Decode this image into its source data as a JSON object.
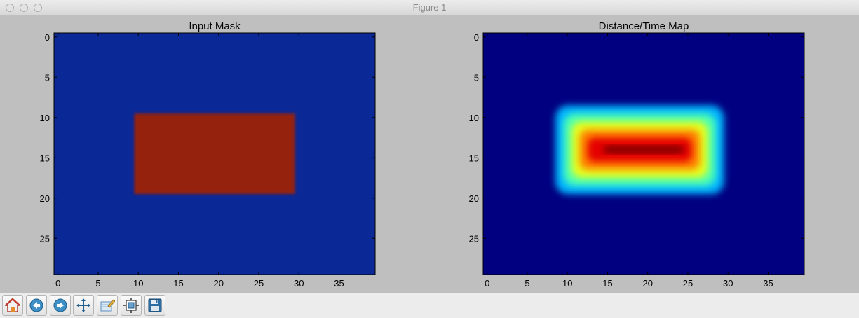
{
  "window": {
    "title": "Figure 1"
  },
  "toolbar": {
    "buttons": [
      {
        "name": "home-button",
        "icon": "home-icon"
      },
      {
        "name": "back-button",
        "icon": "back-arrow-icon"
      },
      {
        "name": "forward-button",
        "icon": "forward-arrow-icon"
      },
      {
        "name": "pan-button",
        "icon": "pan-icon"
      },
      {
        "name": "zoom-button",
        "icon": "zoom-rect-icon"
      },
      {
        "name": "configure-subplots-button",
        "icon": "subplots-icon"
      },
      {
        "name": "save-button",
        "icon": "floppy-disk-icon"
      }
    ]
  },
  "chart_data": [
    {
      "type": "heatmap",
      "title": "Input Mask",
      "xlabel": "",
      "ylabel": "",
      "shape": [
        30,
        40
      ],
      "xlim": [
        -0.5,
        39.5
      ],
      "ylim": [
        29.5,
        -0.5
      ],
      "xticks": [
        0,
        5,
        10,
        15,
        20,
        25,
        30,
        35
      ],
      "yticks": [
        0,
        5,
        10,
        15,
        20,
        25
      ],
      "colormap": "jet",
      "interpolation": "smooth",
      "background_value": 0,
      "regions": [
        {
          "rows": [
            10,
            19
          ],
          "cols": [
            10,
            29
          ],
          "value": 1
        }
      ],
      "colors": {
        "low": "#0a2896",
        "high": "#95200e"
      }
    },
    {
      "type": "heatmap",
      "title": "Distance/Time Map",
      "xlabel": "",
      "ylabel": "",
      "shape": [
        30,
        40
      ],
      "xlim": [
        -0.5,
        39.5
      ],
      "ylim": [
        29.5,
        -0.5
      ],
      "xticks": [
        0,
        5,
        10,
        15,
        20,
        25,
        30,
        35
      ],
      "yticks": [
        0,
        5,
        10,
        15,
        20,
        25
      ],
      "colormap": "jet",
      "interpolation": "smooth",
      "background_value": 0,
      "levels": [
        {
          "rows": [
            9,
            19
          ],
          "cols": [
            9,
            29
          ],
          "value": 0.3
        },
        {
          "rows": [
            10,
            18
          ],
          "cols": [
            10,
            28
          ],
          "value": 0.45
        },
        {
          "rows": [
            11,
            17
          ],
          "cols": [
            11,
            27
          ],
          "value": 0.6
        },
        {
          "rows": [
            12,
            16
          ],
          "cols": [
            12,
            26
          ],
          "value": 0.75
        },
        {
          "rows": [
            13,
            15
          ],
          "cols": [
            13,
            25
          ],
          "value": 0.9
        },
        {
          "rows": [
            14,
            14
          ],
          "cols": [
            15,
            24
          ],
          "value": 1
        }
      ]
    }
  ]
}
